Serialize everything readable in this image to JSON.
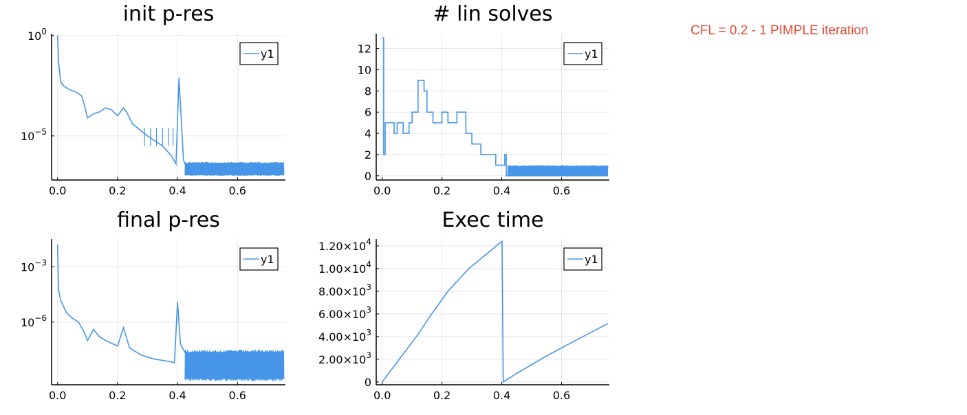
{
  "annotation": {
    "text": "CFL = 0.2 - 1 PIMPLE iteration",
    "color": "#e34a33"
  },
  "series_color": "#4695e8",
  "chart_data": [
    {
      "type": "line",
      "title": "init p-res",
      "xlabel": "",
      "ylabel": "",
      "xlim": [
        -0.02,
        0.76
      ],
      "ylim_log10": [
        -7.2,
        0.1
      ],
      "yscale": "log",
      "xticks": [
        0.0,
        0.2,
        0.4,
        0.6
      ],
      "xtick_labels": [
        "0.0",
        "0.2",
        "0.4",
        "0.6"
      ],
      "yticks": [
        {
          "base": "10",
          "exp": "0",
          "log10": 0
        },
        {
          "base": "10",
          "exp": "−5",
          "log10": -5
        }
      ],
      "legend": {
        "position": "top-right",
        "entries": [
          "y1"
        ]
      },
      "grid": true,
      "series": [
        {
          "name": "y1",
          "kind": "noisy-band",
          "points": [
            [
              0.0,
              0.0
            ],
            [
              0.003,
              -1.2
            ],
            [
              0.01,
              -2.3
            ],
            [
              0.02,
              -2.5
            ],
            [
              0.04,
              -2.7
            ],
            [
              0.06,
              -2.8
            ],
            [
              0.08,
              -3.0
            ],
            [
              0.09,
              -3.5
            ],
            [
              0.1,
              -4.1
            ],
            [
              0.11,
              -4.0
            ],
            [
              0.12,
              -3.9
            ],
            [
              0.14,
              -3.8
            ],
            [
              0.16,
              -3.6
            ],
            [
              0.18,
              -3.7
            ],
            [
              0.2,
              -4.0
            ],
            [
              0.22,
              -3.6
            ],
            [
              0.23,
              -3.8
            ],
            [
              0.25,
              -4.4
            ],
            [
              0.3,
              -5.0
            ],
            [
              0.35,
              -5.5
            ],
            [
              0.38,
              -6.0
            ],
            [
              0.395,
              -6.4
            ],
            [
              0.405,
              -2.1
            ],
            [
              0.42,
              -6.2
            ],
            [
              0.43,
              -6.6
            ],
            [
              0.45,
              -6.8
            ],
            [
              0.755,
              -6.8
            ]
          ],
          "noise_band": {
            "x_from": 0.425,
            "x_to": 0.755,
            "low": -7.0,
            "high": -6.3
          },
          "spikes": [
            [
              0.29,
              -4.6
            ],
            [
              0.31,
              -4.6
            ],
            [
              0.33,
              -4.6
            ],
            [
              0.35,
              -4.6
            ],
            [
              0.37,
              -4.6
            ],
            [
              0.385,
              -4.6
            ]
          ]
        }
      ]
    },
    {
      "type": "line",
      "title": "# lin solves",
      "xlabel": "",
      "ylabel": "",
      "xlim": [
        -0.02,
        0.76
      ],
      "ylim": [
        -0.4,
        13.4
      ],
      "yscale": "linear",
      "xticks": [
        0.0,
        0.2,
        0.4,
        0.6
      ],
      "xtick_labels": [
        "0.0",
        "0.2",
        "0.4",
        "0.6"
      ],
      "yticks": [
        0,
        2,
        4,
        6,
        8,
        10,
        12
      ],
      "ytick_labels": [
        "0",
        "2",
        "4",
        "6",
        "8",
        "10",
        "12"
      ],
      "legend": {
        "position": "top-right",
        "entries": [
          "y1"
        ]
      },
      "grid": true,
      "series": [
        {
          "name": "y1",
          "kind": "step",
          "points": [
            [
              0.0,
              13
            ],
            [
              0.005,
              2
            ],
            [
              0.01,
              5
            ],
            [
              0.04,
              4
            ],
            [
              0.05,
              5
            ],
            [
              0.07,
              4
            ],
            [
              0.09,
              5
            ],
            [
              0.1,
              6
            ],
            [
              0.12,
              9
            ],
            [
              0.14,
              8
            ],
            [
              0.15,
              6
            ],
            [
              0.17,
              5
            ],
            [
              0.2,
              6
            ],
            [
              0.22,
              5
            ],
            [
              0.25,
              6
            ],
            [
              0.28,
              4
            ],
            [
              0.3,
              3
            ],
            [
              0.33,
              2
            ],
            [
              0.38,
              1
            ],
            [
              0.41,
              2
            ],
            [
              0.415,
              0
            ],
            [
              0.755,
              0
            ]
          ],
          "noise_band": {
            "x_from": 0.42,
            "x_to": 0.755,
            "low": 0,
            "high": 1
          }
        }
      ]
    },
    {
      "type": "line",
      "title": "final p-res",
      "xlabel": "",
      "ylabel": "",
      "xlim": [
        -0.02,
        0.76
      ],
      "ylim_log10": [
        -9.4,
        -1.5
      ],
      "yscale": "log",
      "xticks": [
        0.0,
        0.2,
        0.4,
        0.6
      ],
      "xtick_labels": [
        "0.0",
        "0.2",
        "0.4",
        "0.6"
      ],
      "yticks": [
        {
          "base": "10",
          "exp": "−3",
          "log10": -3
        },
        {
          "base": "10",
          "exp": "−6",
          "log10": -6
        }
      ],
      "legend": {
        "position": "top-right",
        "entries": [
          "y1"
        ]
      },
      "grid": true,
      "series": [
        {
          "name": "y1",
          "kind": "noisy-band",
          "points": [
            [
              0.0,
              -1.8
            ],
            [
              0.003,
              -4.2
            ],
            [
              0.01,
              -4.8
            ],
            [
              0.03,
              -5.5
            ],
            [
              0.05,
              -5.8
            ],
            [
              0.07,
              -6.0
            ],
            [
              0.09,
              -6.6
            ],
            [
              0.1,
              -7.0
            ],
            [
              0.12,
              -6.4
            ],
            [
              0.14,
              -6.8
            ],
            [
              0.16,
              -7.0
            ],
            [
              0.2,
              -7.3
            ],
            [
              0.22,
              -6.3
            ],
            [
              0.24,
              -7.4
            ],
            [
              0.28,
              -7.8
            ],
            [
              0.32,
              -8.0
            ],
            [
              0.36,
              -8.1
            ],
            [
              0.39,
              -8.2
            ],
            [
              0.4,
              -4.9
            ],
            [
              0.41,
              -7.2
            ],
            [
              0.43,
              -7.8
            ],
            [
              0.755,
              -7.8
            ]
          ],
          "noise_band": {
            "x_from": 0.425,
            "x_to": 0.755,
            "low": -9.2,
            "high": -7.5
          }
        }
      ]
    },
    {
      "type": "line",
      "title": "Exec time",
      "xlabel": "",
      "ylabel": "",
      "xlim": [
        -0.02,
        0.76
      ],
      "ylim": [
        -250,
        12600
      ],
      "yscale": "linear",
      "xticks": [
        0.0,
        0.2,
        0.4,
        0.6
      ],
      "xtick_labels": [
        "0.0",
        "0.2",
        "0.4",
        "0.6"
      ],
      "yticks": [
        0,
        2000,
        4000,
        6000,
        8000,
        10000,
        12000
      ],
      "ytick_labels": [
        {
          "mant": "0",
          "exp": ""
        },
        {
          "mant": "2.00×10",
          "exp": "3"
        },
        {
          "mant": "4.00×10",
          "exp": "3"
        },
        {
          "mant": "6.00×10",
          "exp": "3"
        },
        {
          "mant": "8.00×10",
          "exp": "3"
        },
        {
          "mant": "1.00×10",
          "exp": "4"
        },
        {
          "mant": "1.20×10",
          "exp": "4"
        }
      ],
      "legend": {
        "position": "top-right",
        "entries": [
          "y1"
        ]
      },
      "grid": true,
      "series": [
        {
          "name": "y1",
          "kind": "line",
          "points": [
            [
              0.0,
              0
            ],
            [
              0.02,
              700
            ],
            [
              0.06,
              2100
            ],
            [
              0.12,
              4200
            ],
            [
              0.16,
              5800
            ],
            [
              0.22,
              8000
            ],
            [
              0.29,
              10000
            ],
            [
              0.35,
              11300
            ],
            [
              0.4,
              12400
            ],
            [
              0.401,
              12450
            ],
            [
              0.405,
              0
            ],
            [
              0.45,
              750
            ],
            [
              0.55,
              2300
            ],
            [
              0.65,
              3700
            ],
            [
              0.755,
              5150
            ]
          ]
        }
      ]
    }
  ]
}
